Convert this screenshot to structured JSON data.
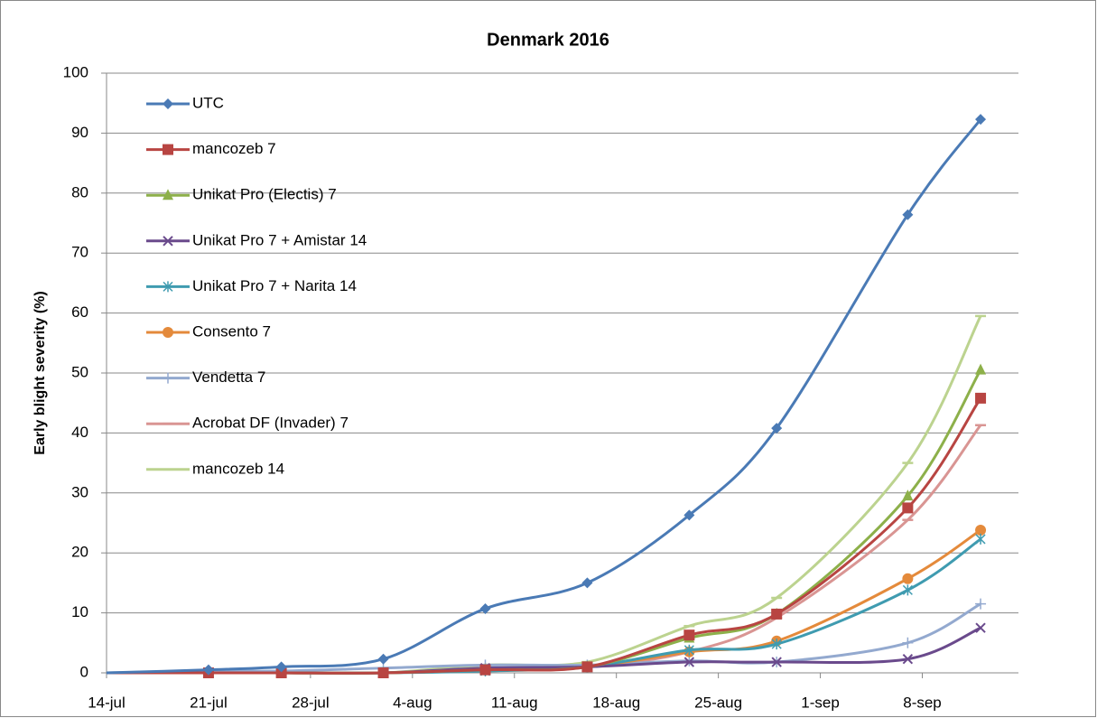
{
  "chart_data": {
    "type": "line",
    "title": "Denmark 2016",
    "y_label": "Early blight severity (%)",
    "x": [
      196,
      203,
      208,
      215,
      222,
      229,
      236,
      242,
      251,
      256
    ],
    "xlim": [
      196,
      258.6
    ],
    "xticks": [
      {
        "value": 196,
        "label": "14-jul"
      },
      {
        "value": 203,
        "label": "21-jul"
      },
      {
        "value": 210,
        "label": "28-jul"
      },
      {
        "value": 217,
        "label": "4-aug"
      },
      {
        "value": 224,
        "label": "11-aug"
      },
      {
        "value": 231,
        "label": "18-aug"
      },
      {
        "value": 238,
        "label": "25-aug"
      },
      {
        "value": 245,
        "label": "1-sep"
      },
      {
        "value": 252,
        "label": "8-sep"
      }
    ],
    "ylim": [
      0,
      100
    ],
    "yticks": [
      0,
      10,
      20,
      30,
      40,
      50,
      60,
      70,
      80,
      90,
      100
    ],
    "grid": true,
    "smooth": true,
    "legend": "upper left",
    "series": [
      {
        "name": "UTC",
        "color": "#4a7ab5",
        "marker": "diamond",
        "values": [
          0,
          0.5,
          1,
          2.3,
          10.7,
          15,
          26.3,
          40.8,
          76.4,
          92.3
        ]
      },
      {
        "name": "mancozeb 7",
        "color": "#b84542",
        "marker": "square",
        "values": [
          0,
          0,
          0,
          0,
          0.5,
          1,
          6.3,
          9.8,
          27.5,
          45.8
        ]
      },
      {
        "name": "Unikat Pro (Electis) 7",
        "color": "#8db04a",
        "marker": "triangle",
        "values": [
          0,
          0,
          0,
          0,
          0.5,
          1,
          5.8,
          9.8,
          29.5,
          50.5
        ]
      },
      {
        "name": "Unikat Pro 7 + Amistar 14",
        "color": "#6a4a8c",
        "marker": "x",
        "values": [
          0,
          0,
          0,
          0,
          0.8,
          1,
          1.8,
          1.8,
          2.3,
          7.5
        ]
      },
      {
        "name": "Unikat Pro 7 + Narita 14",
        "color": "#3f9bb0",
        "marker": "star",
        "values": [
          0,
          0,
          0,
          0,
          0.3,
          1,
          3.8,
          4.8,
          13.8,
          22.3
        ]
      },
      {
        "name": "Consento 7",
        "color": "#e48a3b",
        "marker": "circle",
        "values": [
          0,
          0,
          0,
          0,
          0.5,
          1,
          3.5,
          5.3,
          15.7,
          23.8
        ]
      },
      {
        "name": "Vendetta 7",
        "color": "#93a9cf",
        "marker": "plus",
        "values": [
          0,
          0.3,
          0.3,
          0.8,
          1.3,
          1.3,
          2,
          1.8,
          5,
          11.5
        ]
      },
      {
        "name": "Acrobat DF (Invader) 7",
        "color": "#d99593",
        "marker": "dash",
        "values": [
          0,
          0,
          0,
          0,
          0.8,
          1,
          3.5,
          9.2,
          25.5,
          41.3
        ]
      },
      {
        "name": "mancozeb 14",
        "color": "#bcd38f",
        "marker": "dash",
        "values": [
          0,
          0,
          0,
          0,
          1.3,
          1.8,
          7.8,
          12.5,
          35,
          59.5
        ]
      }
    ]
  }
}
